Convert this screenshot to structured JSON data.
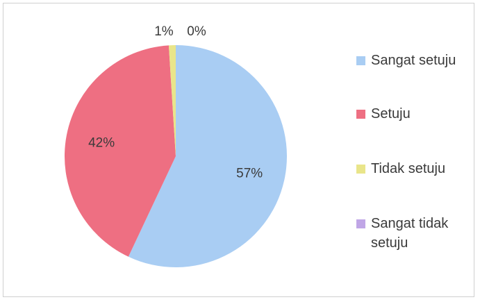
{
  "chart_data": {
    "type": "pie",
    "categories": [
      "Sangat setuju",
      "Setuju",
      "Tidak setuju",
      "Sangat tidak setuju"
    ],
    "values": [
      57,
      42,
      1,
      0
    ],
    "data_labels": [
      "57%",
      "42%",
      "1%",
      "0%"
    ],
    "colors": [
      "#a9cdf3",
      "#ee6f82",
      "#e9e58a",
      "#c0a6e6"
    ],
    "legend_position": "right"
  }
}
